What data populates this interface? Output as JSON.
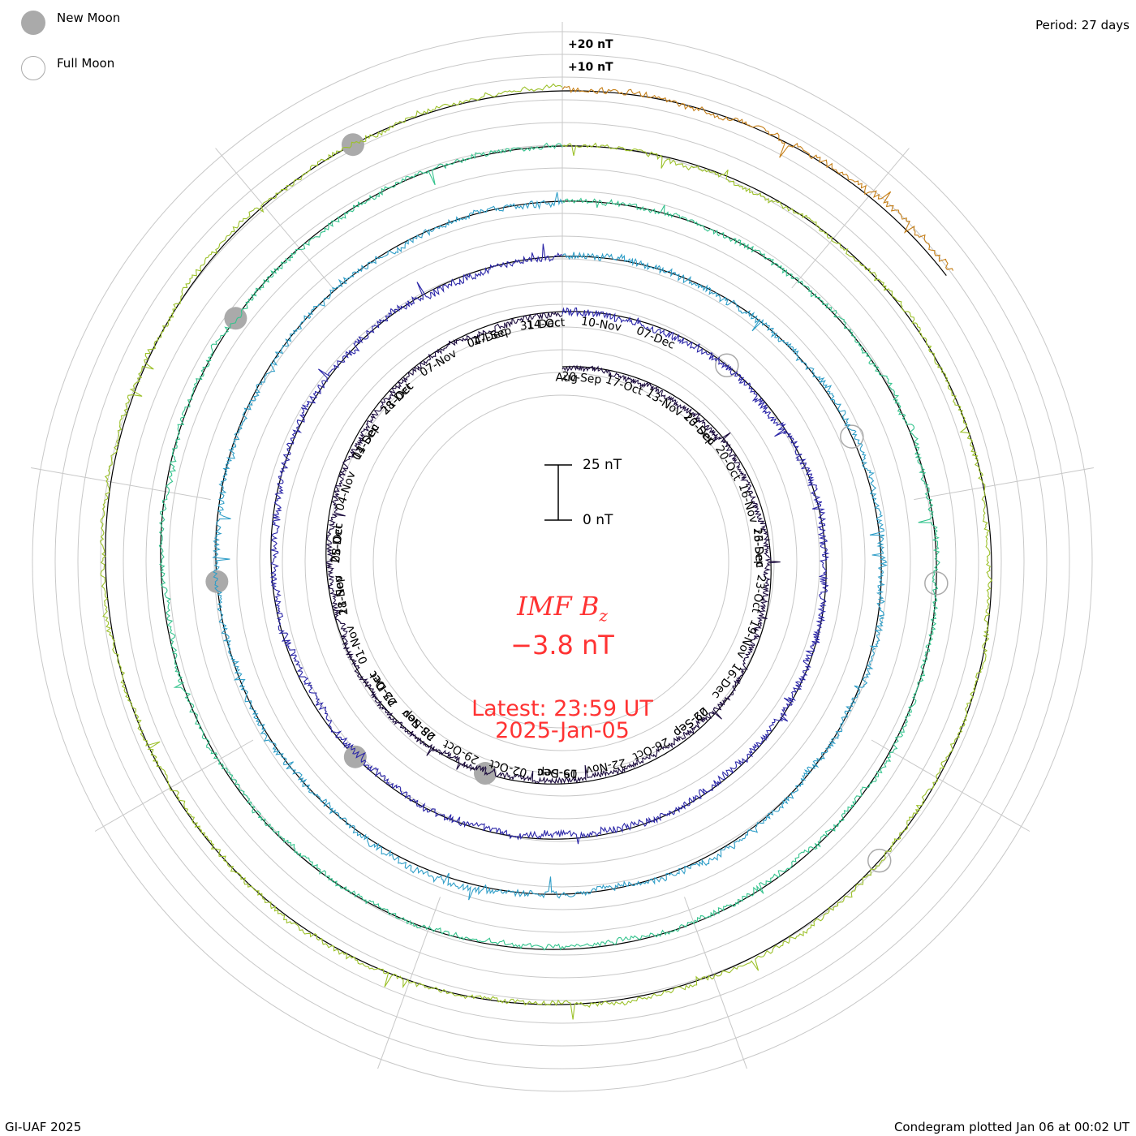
{
  "legend": {
    "new_moon": {
      "label": "New Moon",
      "icon": "filled-grey-circle",
      "color": "#aaaaaa"
    },
    "full_moon": {
      "label": "Full Moon",
      "icon": "open-grey-circle",
      "color": "#aaaaaa"
    }
  },
  "period_text": "Period: 27 days",
  "credit": "GI-UAF 2025",
  "plotted_text": "Condegram plotted Jan 06 at 00:02 UT",
  "ring_reference_labels": [
    "+20 nT",
    "+10 nT"
  ],
  "scale_bar": {
    "top_label": "25 nT",
    "bottom_label": "0 nT"
  },
  "center": {
    "parameter": "IMF B",
    "subscript": "z",
    "current_value": "−3.8 nT",
    "latest_line": "Latest: 23:59 UT",
    "date_line": "2025-Jan-05",
    "color": "#ff3333"
  },
  "chart_data": {
    "type": "line",
    "variant": "spiral condegram",
    "period_days": 27,
    "value_unit": "nT",
    "scale_nT": 25,
    "series": [
      {
        "name": "",
        "color": "#1a0a3c",
        "start": "2024-08-19",
        "end": "2024-09-15",
        "baseline_nT": -1.5,
        "amplitude_nT": 2.6
      },
      {
        "name": "",
        "color": "#2b26a8",
        "start": "2024-09-15",
        "end": "2024-10-12",
        "baseline_nT": -0.5,
        "amplitude_nT": 3.4
      },
      {
        "name": "",
        "color": "#2f9ec8",
        "start": "2024-10-12",
        "end": "2024-11-08",
        "baseline_nT": 0.2,
        "amplitude_nT": 3.0
      },
      {
        "name": "",
        "color": "#35c48e",
        "start": "2024-11-08",
        "end": "2024-12-05",
        "baseline_nT": 0.0,
        "amplitude_nT": 2.4
      },
      {
        "name": "",
        "color": "#9cc12a",
        "start": "2024-12-05",
        "end": "2025-01-01",
        "baseline_nT": 0.3,
        "amplitude_nT": 2.2
      },
      {
        "name": "",
        "color": "#c6801a",
        "start": "2025-01-01",
        "end": "2025-01-05",
        "baseline_nT": 0.8,
        "amplitude_nT": 2.8
      }
    ],
    "day_labels": [
      {
        "text": "20-Sep",
        "day": 0.45
      },
      {
        "text": "17-Oct",
        "day": 1.45
      },
      {
        "text": "13-Nov",
        "day": 2.45
      },
      {
        "text": "10-Dec",
        "day": 3.45
      },
      {
        "text": "23-Sep",
        "day": 3.45
      },
      {
        "text": "20-Oct",
        "day": 4.45
      },
      {
        "text": "16-Nov",
        "day": 5.45
      },
      {
        "text": "13-Dec",
        "day": 6.45
      },
      {
        "text": "26-Sep",
        "day": 6.45
      },
      {
        "text": "23-Oct",
        "day": 7.45
      },
      {
        "text": "19-Nov",
        "day": 8.45
      },
      {
        "text": "16-Dec",
        "day": 9.45
      },
      {
        "text": "02-Sep",
        "day": 10.6
      },
      {
        "text": "29-Sep",
        "day": 10.6
      },
      {
        "text": "26-Oct",
        "day": 11.6
      },
      {
        "text": "22-Nov",
        "day": 12.6
      },
      {
        "text": "19-Dec",
        "day": 13.6
      },
      {
        "text": "05-Sep",
        "day": 13.6
      },
      {
        "text": "02-Oct",
        "day": 14.6
      },
      {
        "text": "29-Oct",
        "day": 15.6
      },
      {
        "text": "25-Nov",
        "day": 16.6
      },
      {
        "text": "22-Dec",
        "day": 17.6
      },
      {
        "text": "08-Sep",
        "day": 16.6
      },
      {
        "text": "05-Oct",
        "day": 17.6
      },
      {
        "text": "01-Nov",
        "day": 18.6
      },
      {
        "text": "28-Nov",
        "day": 19.6
      },
      {
        "text": "25-Dec",
        "day": 20.6
      },
      {
        "text": "11-Sep",
        "day": 19.6
      },
      {
        "text": "08-Oct",
        "day": 20.6
      },
      {
        "text": "04-Nov",
        "day": 21.6
      },
      {
        "text": "01-Dec",
        "day": 22.6
      },
      {
        "text": "28-Dec",
        "day": 23.6
      },
      {
        "text": "14-Sep",
        "day": 22.6
      },
      {
        "text": "11-Oct",
        "day": 23.6
      },
      {
        "text": "07-Nov",
        "day": 24.6
      },
      {
        "text": "04-Dec",
        "day": 25.6
      },
      {
        "text": "31-Dec",
        "day": 26.6
      },
      {
        "text": "17-Sep",
        "day": 25.7
      },
      {
        "text": "14-Oct",
        "day": 26.7
      },
      {
        "text": "10-Nov",
        "day": 27.7
      },
      {
        "text": "07-Dec",
        "day": 28.7
      },
      {
        "text": "Aug",
        "day": 0.1
      }
    ],
    "new_moons": [
      "2024-09-03",
      "2024-10-02",
      "2024-11-01",
      "2024-12-01",
      "2024-12-30"
    ],
    "full_moons": [
      "2024-09-18",
      "2024-10-17",
      "2024-11-15",
      "2024-12-15"
    ],
    "grid": true
  }
}
